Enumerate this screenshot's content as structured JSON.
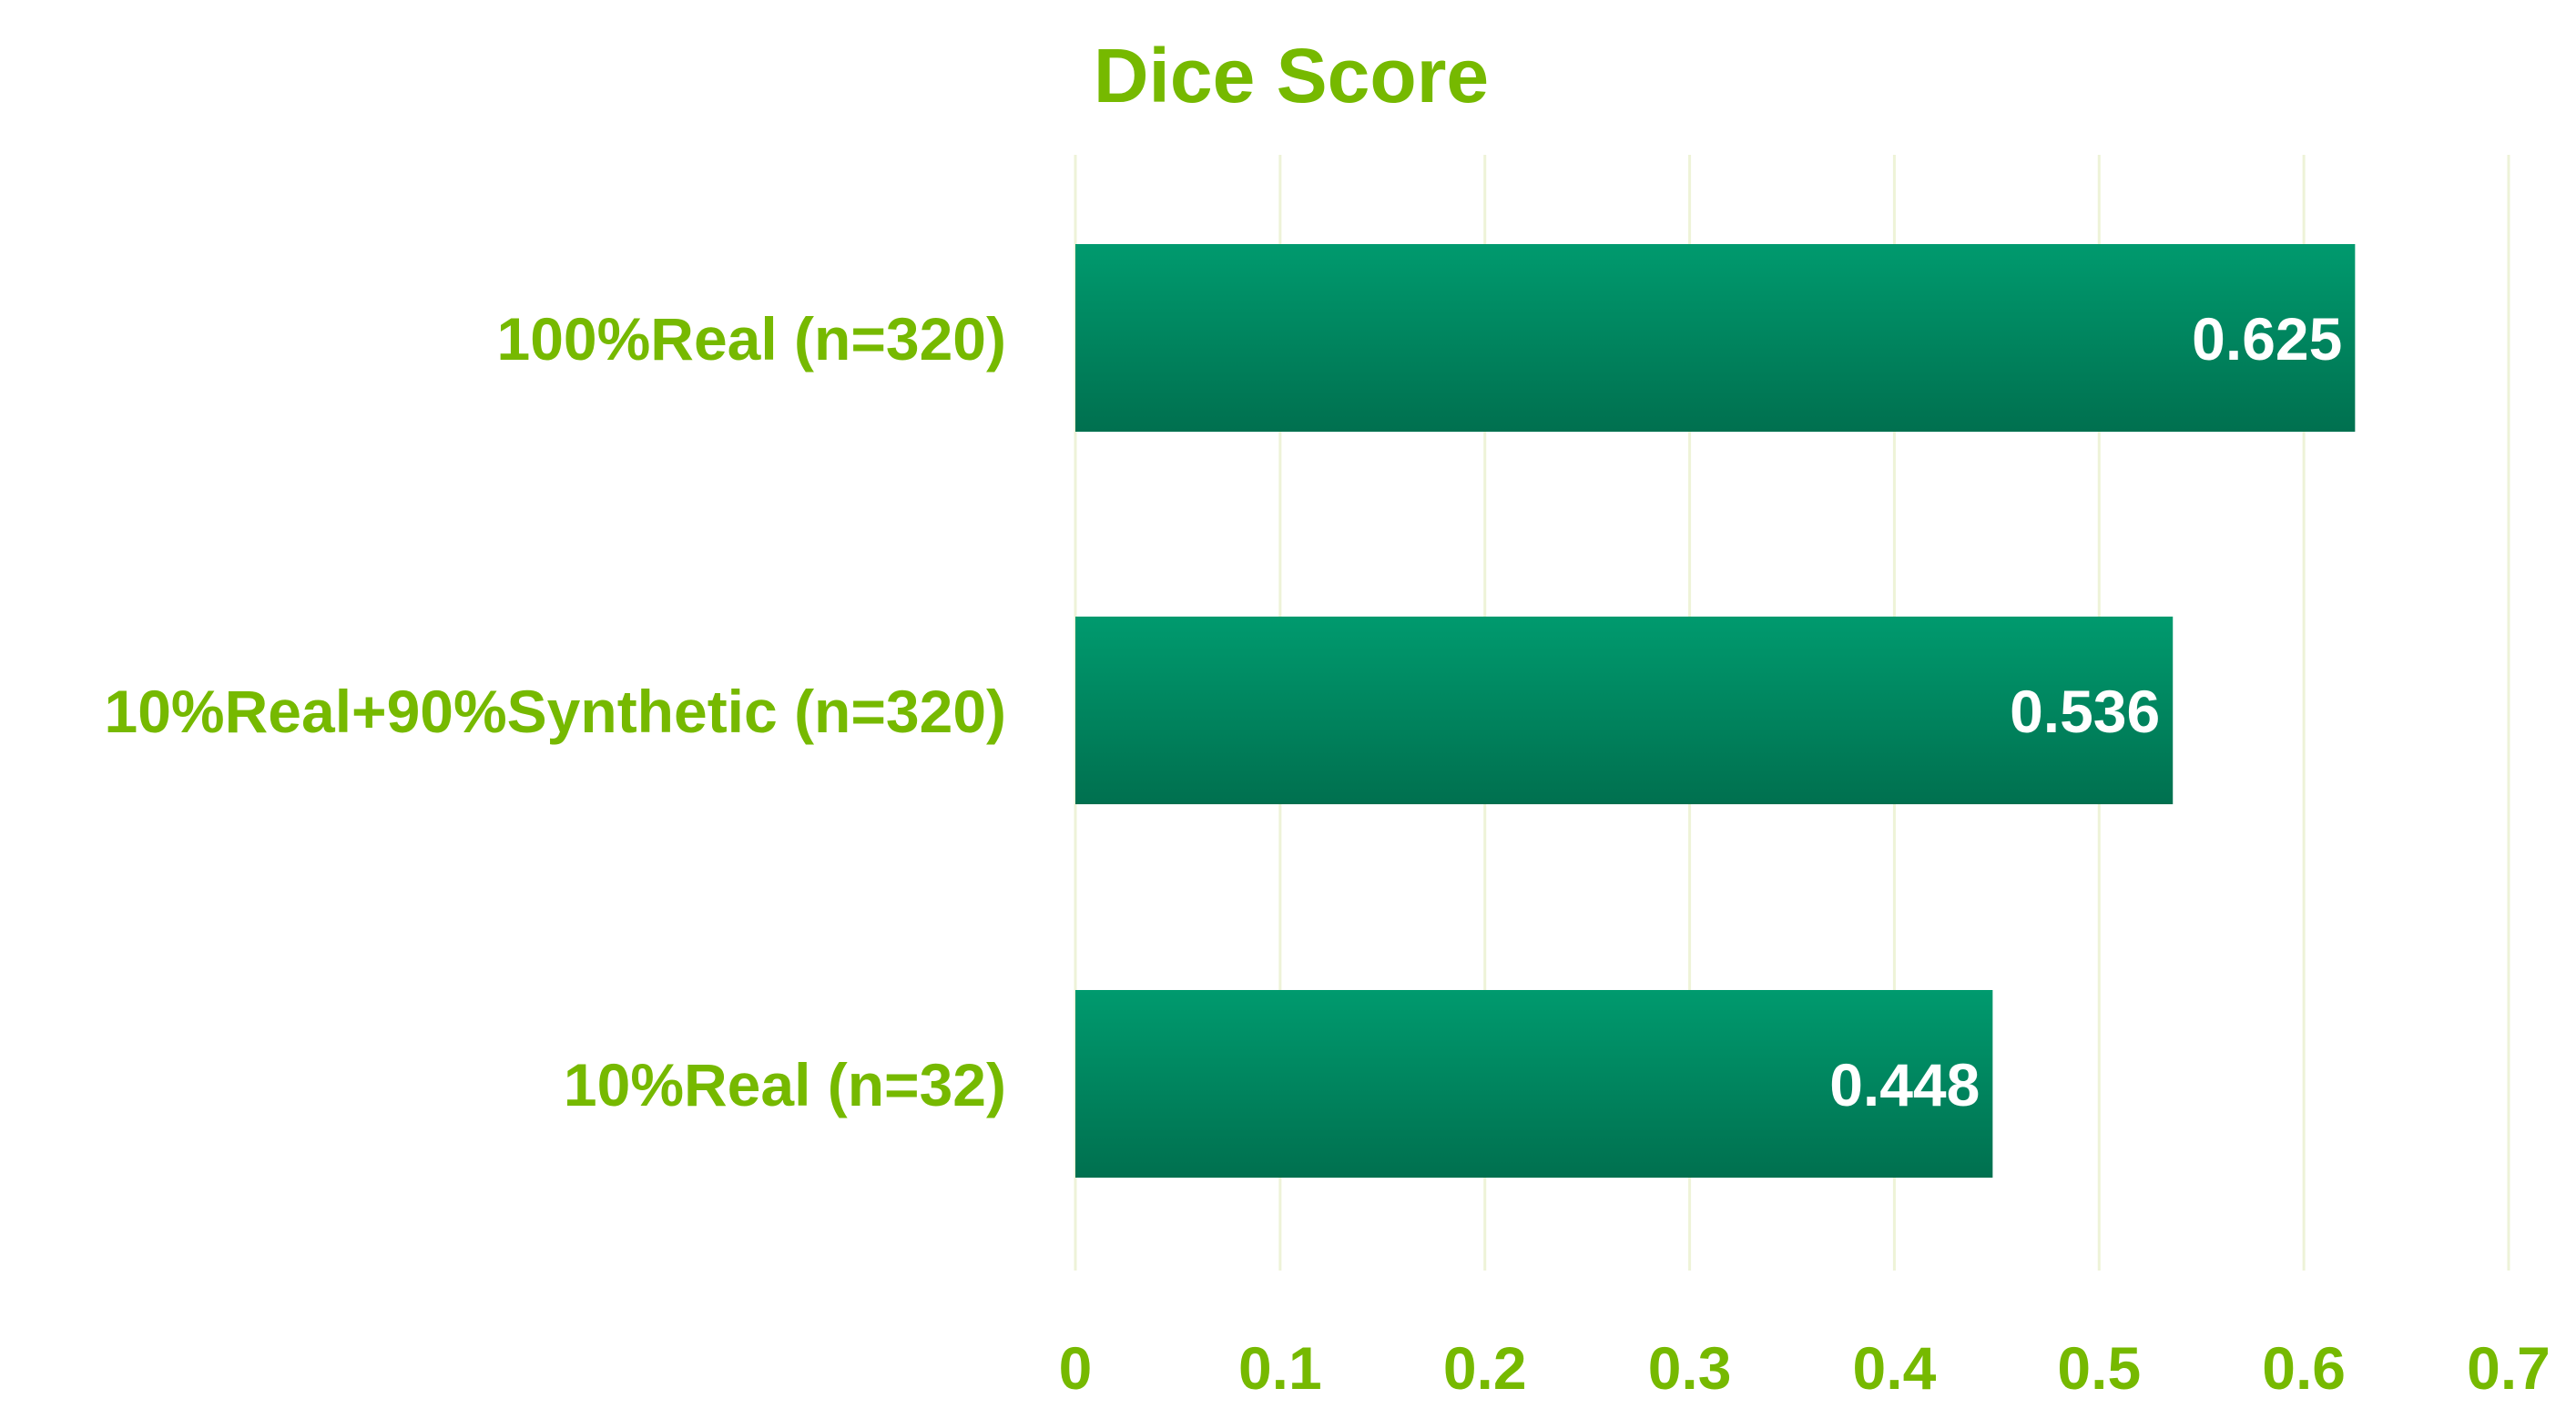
{
  "chart_data": {
    "type": "bar",
    "orientation": "horizontal",
    "title": "Dice Score",
    "categories": [
      "100%Real (n=320)",
      "10%Real+90%Synthetic (n=320)",
      "10%Real (n=32)"
    ],
    "values": [
      0.625,
      0.536,
      0.448
    ],
    "data_labels": [
      "0.625",
      "0.536",
      "0.448"
    ],
    "xlim": [
      0,
      0.7
    ],
    "xticks": [
      0,
      0.1,
      0.2,
      0.3,
      0.4,
      0.5,
      0.6,
      0.7
    ],
    "xtick_labels": [
      "0",
      "0.1",
      "0.2",
      "0.3",
      "0.4",
      "0.5",
      "0.6",
      "0.7"
    ],
    "xlabel": "",
    "ylabel": "",
    "grid": true,
    "legend": "none",
    "colors": {
      "bar_top": "#009A6E",
      "bar_bottom": "#00704F",
      "text": "#76B900",
      "data_label": "#FFFFFF",
      "grid": "#EEF3D8"
    }
  }
}
